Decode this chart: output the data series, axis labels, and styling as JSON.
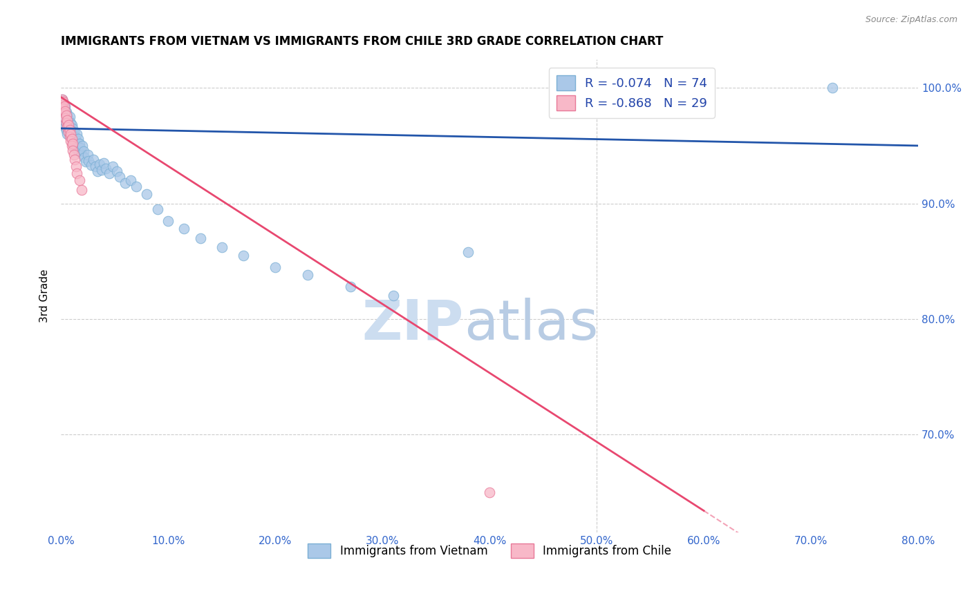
{
  "title": "IMMIGRANTS FROM VIETNAM VS IMMIGRANTS FROM CHILE 3RD GRADE CORRELATION CHART",
  "source": "Source: ZipAtlas.com",
  "ylabel": "3rd Grade",
  "xlim": [
    0.0,
    0.8
  ],
  "ylim": [
    0.615,
    1.025
  ],
  "xtick_labels": [
    "0.0%",
    "10.0%",
    "20.0%",
    "30.0%",
    "40.0%",
    "50.0%",
    "60.0%",
    "70.0%",
    "80.0%"
  ],
  "xtick_values": [
    0.0,
    0.1,
    0.2,
    0.3,
    0.4,
    0.5,
    0.6,
    0.7,
    0.8
  ],
  "ytick_labels": [
    "100.0%",
    "90.0%",
    "80.0%",
    "70.0%"
  ],
  "ytick_values": [
    1.0,
    0.9,
    0.8,
    0.7
  ],
  "vietnam_color": "#aac8e8",
  "vietnam_color_edge": "#7bafd4",
  "chile_color": "#f8b8c8",
  "chile_color_edge": "#e87898",
  "trend_vietnam_color": "#2255aa",
  "trend_chile_color": "#e84870",
  "R_vietnam": -0.074,
  "N_vietnam": 74,
  "R_chile": -0.868,
  "N_chile": 29,
  "legend_label_vietnam": "Immigrants from Vietnam",
  "legend_label_chile": "Immigrants from Chile",
  "vietnam_x": [
    0.001,
    0.001,
    0.002,
    0.002,
    0.002,
    0.003,
    0.003,
    0.003,
    0.004,
    0.004,
    0.004,
    0.005,
    0.005,
    0.005,
    0.006,
    0.006,
    0.006,
    0.007,
    0.007,
    0.008,
    0.008,
    0.008,
    0.009,
    0.009,
    0.01,
    0.01,
    0.011,
    0.011,
    0.012,
    0.012,
    0.013,
    0.013,
    0.014,
    0.015,
    0.015,
    0.016,
    0.016,
    0.017,
    0.018,
    0.019,
    0.02,
    0.021,
    0.022,
    0.023,
    0.025,
    0.026,
    0.028,
    0.03,
    0.032,
    0.034,
    0.036,
    0.038,
    0.04,
    0.042,
    0.045,
    0.048,
    0.052,
    0.055,
    0.06,
    0.065,
    0.07,
    0.08,
    0.09,
    0.1,
    0.115,
    0.13,
    0.15,
    0.17,
    0.2,
    0.23,
    0.27,
    0.31,
    0.38,
    0.72
  ],
  "vietnam_y": [
    0.99,
    0.985,
    0.988,
    0.98,
    0.978,
    0.982,
    0.976,
    0.97,
    0.984,
    0.974,
    0.966,
    0.979,
    0.971,
    0.963,
    0.977,
    0.968,
    0.96,
    0.973,
    0.965,
    0.975,
    0.967,
    0.959,
    0.97,
    0.962,
    0.968,
    0.958,
    0.965,
    0.955,
    0.962,
    0.952,
    0.958,
    0.948,
    0.955,
    0.96,
    0.95,
    0.956,
    0.946,
    0.952,
    0.948,
    0.943,
    0.95,
    0.945,
    0.94,
    0.936,
    0.942,
    0.937,
    0.933,
    0.938,
    0.932,
    0.928,
    0.934,
    0.929,
    0.935,
    0.93,
    0.926,
    0.932,
    0.928,
    0.923,
    0.918,
    0.92,
    0.915,
    0.908,
    0.895,
    0.885,
    0.878,
    0.87,
    0.862,
    0.855,
    0.845,
    0.838,
    0.828,
    0.82,
    0.858,
    1.0
  ],
  "chile_x": [
    0.001,
    0.001,
    0.002,
    0.002,
    0.003,
    0.003,
    0.004,
    0.004,
    0.005,
    0.005,
    0.006,
    0.006,
    0.007,
    0.007,
    0.008,
    0.008,
    0.009,
    0.009,
    0.01,
    0.01,
    0.011,
    0.011,
    0.012,
    0.013,
    0.014,
    0.015,
    0.017,
    0.019,
    0.4
  ],
  "chile_y": [
    0.99,
    0.985,
    0.988,
    0.982,
    0.984,
    0.978,
    0.98,
    0.974,
    0.976,
    0.97,
    0.972,
    0.966,
    0.968,
    0.962,
    0.964,
    0.958,
    0.96,
    0.954,
    0.956,
    0.95,
    0.952,
    0.946,
    0.942,
    0.938,
    0.932,
    0.926,
    0.92,
    0.912,
    0.65
  ],
  "trend_vn_x0": 0.0,
  "trend_vn_y0": 0.965,
  "trend_vn_x1": 0.8,
  "trend_vn_y1": 0.95,
  "trend_cl_x0": 0.0,
  "trend_cl_y0": 0.992,
  "trend_cl_x1": 0.6,
  "trend_cl_y1": 0.634
}
